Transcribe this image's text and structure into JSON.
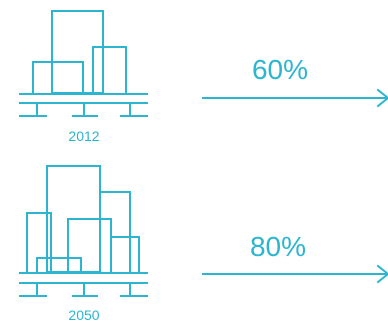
{
  "accent_color": "#2bb5cf",
  "rows": [
    {
      "year": "2012",
      "percent": "60%"
    },
    {
      "year": "2050",
      "percent": "80%"
    }
  ]
}
